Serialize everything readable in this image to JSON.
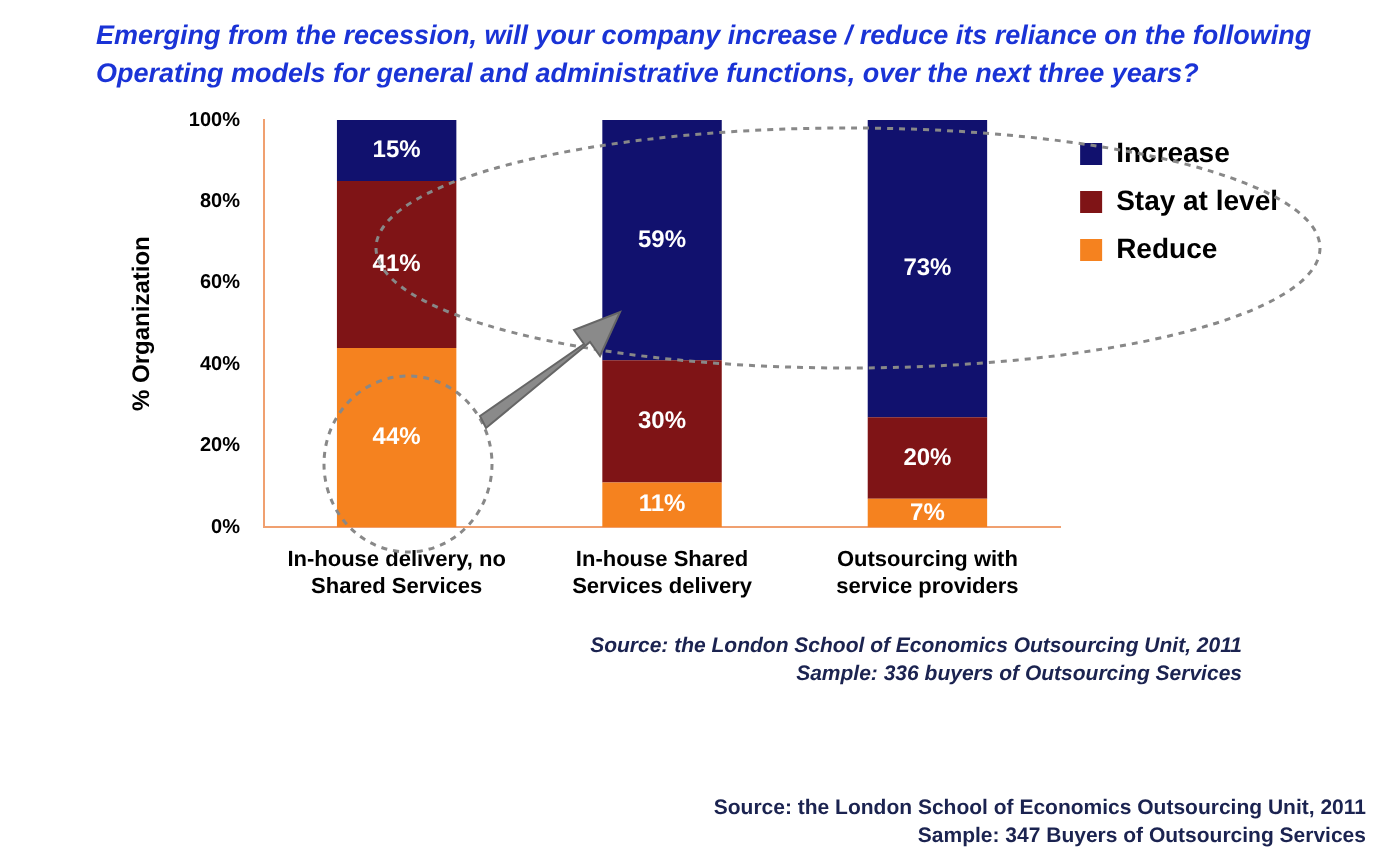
{
  "chart_data": {
    "type": "bar",
    "stacked": true,
    "title": "Emerging from the recession, will your company increase / reduce its reliance on the following Operating models for general and administrative functions, over the next three years?",
    "ylabel": "% Organization",
    "categories": [
      "In-house delivery, no Shared Services",
      "In-house Shared Services delivery",
      "Outsourcing with service providers"
    ],
    "series": [
      {
        "name": "Reduce",
        "color": "#f5821f",
        "values": [
          44,
          11,
          7
        ],
        "value_labels": [
          "44%",
          "11%",
          "7%"
        ]
      },
      {
        "name": "Stay at level",
        "color": "#7f1416",
        "values": [
          41,
          30,
          20
        ],
        "value_labels": [
          "41%",
          "30%",
          "20%"
        ]
      },
      {
        "name": "Increase",
        "color": "#11116e",
        "values": [
          15,
          59,
          73
        ],
        "value_labels": [
          "15%",
          "59%",
          "73%"
        ]
      }
    ],
    "ylim": [
      0,
      100
    ],
    "yticks": [
      {
        "value": 0,
        "label": "0%"
      },
      {
        "value": 20,
        "label": "20%"
      },
      {
        "value": 40,
        "label": "40%"
      },
      {
        "value": 60,
        "label": "60%"
      },
      {
        "value": 80,
        "label": "80%"
      },
      {
        "value": 100,
        "label": "100%"
      }
    ],
    "grid": false,
    "legend": "top right",
    "annotations": [
      "Source: the London School of Economics Outsourcing Unit, 2011",
      "Sample: 336 buyers of Outsourcing Services",
      "Source: the London School of Economics Outsourcing Unit, 2011",
      "Sample: 347 Buyers of Outsourcing Services"
    ]
  }
}
